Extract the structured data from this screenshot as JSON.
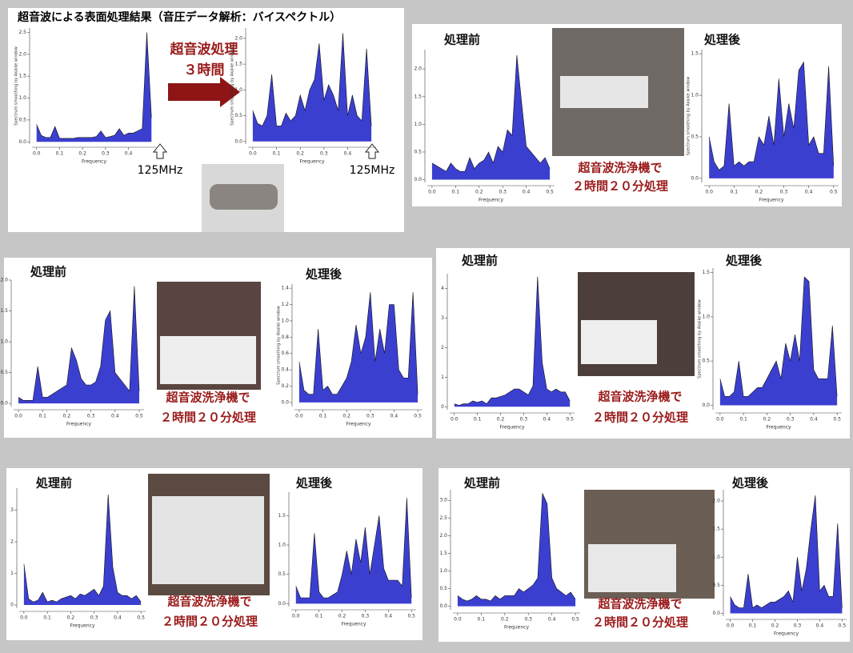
{
  "title": "超音波による表面処理結果（音圧データ解析：バイスペクトル）",
  "arrow_label": [
    "超音波処理",
    "３時間"
  ],
  "marker_labels": [
    "125MHz",
    "125MHz"
  ],
  "panels": [
    {
      "before": "処理前",
      "after": "処理後",
      "note": [
        "超音波洗浄機で",
        "２時間２０分処理"
      ]
    },
    {
      "before": "処理前",
      "after": "処理後",
      "note": [
        "超音波洗浄機で",
        "２時間２０分処理"
      ]
    },
    {
      "before": "処理前",
      "after": "処理後",
      "note": [
        "超音波洗浄機で",
        "２時間２０分処理"
      ]
    },
    {
      "before": "処理前",
      "after": "処理後",
      "note": [
        "超音波洗浄機で",
        "２時間２０分処理"
      ]
    },
    {
      "before": "処理前",
      "after": "処理後",
      "note": [
        "超音波洗浄機で",
        "２時間２０分処理"
      ]
    }
  ],
  "chart_data": [
    {
      "type": "area",
      "color": "#3b3fd0",
      "xlabel": "Frequency",
      "ylabel": "Spectrum smoothing by Akaike window",
      "xlim": [
        -0.02,
        0.52
      ],
      "ylim": [
        -0.05,
        2.6
      ],
      "xticks": [
        {
          "value": 0,
          "label": "0.0"
        },
        0.1,
        0.2,
        0.3,
        0.4
      ],
      "yticks": [
        {
          "value": 0,
          "label": "0.0"
        },
        0.5,
        {
          "value": 1,
          "label": "1.0"
        },
        1.5,
        {
          "value": 2,
          "label": "2.0"
        },
        2.5
      ],
      "x": [
        0,
        0.02,
        0.04,
        0.06,
        0.08,
        0.1,
        0.12,
        0.14,
        0.16,
        0.18,
        0.2,
        0.22,
        0.24,
        0.26,
        0.28,
        0.3,
        0.32,
        0.34,
        0.36,
        0.38,
        0.4,
        0.42,
        0.44,
        0.46,
        0.48,
        0.5
      ],
      "values": [
        0.4,
        0.15,
        0.1,
        0.1,
        0.35,
        0.08,
        0.08,
        0.08,
        0.08,
        0.1,
        0.1,
        0.1,
        0.1,
        0.12,
        0.25,
        0.1,
        0.12,
        0.15,
        0.3,
        0.15,
        0.2,
        0.2,
        0.25,
        0.3,
        2.5,
        0.55
      ]
    },
    {
      "type": "area",
      "color": "#3b3fd0",
      "xlabel": "Frequency",
      "ylabel": "Spectrum smoothing by Akaike window",
      "xlim": [
        -0.02,
        0.52
      ],
      "ylim": [
        -0.05,
        2.2
      ],
      "xticks": [
        {
          "value": 0,
          "label": "0.0"
        },
        0.1,
        0.2,
        0.3,
        0.4
      ],
      "yticks": [
        {
          "value": 0,
          "label": "0.0"
        },
        0.5,
        {
          "value": 1,
          "label": "1.0"
        },
        1.5,
        {
          "value": 2,
          "label": "2.0"
        }
      ],
      "x": [
        0,
        0.02,
        0.04,
        0.06,
        0.08,
        0.1,
        0.12,
        0.14,
        0.16,
        0.18,
        0.2,
        0.22,
        0.24,
        0.26,
        0.28,
        0.3,
        0.32,
        0.34,
        0.36,
        0.38,
        0.4,
        0.42,
        0.44,
        0.46,
        0.48,
        0.5
      ],
      "values": [
        0.6,
        0.35,
        0.3,
        0.5,
        1.3,
        0.3,
        0.3,
        0.55,
        0.4,
        0.5,
        0.9,
        0.6,
        1.0,
        1.2,
        1.9,
        0.8,
        1.1,
        0.9,
        0.6,
        2.1,
        0.5,
        0.9,
        0.5,
        0.4,
        1.8,
        0.3
      ]
    },
    {
      "type": "area",
      "color": "#3b3fd0",
      "xlabel": "Frequency",
      "xlim": [
        -0.02,
        0.52
      ],
      "ylim": [
        -0.05,
        2.35
      ],
      "xticks": [
        {
          "value": 0,
          "label": "0.0"
        },
        0.1,
        0.2,
        0.3,
        0.4,
        0.5
      ],
      "yticks": [
        {
          "value": 0,
          "label": "0.0"
        },
        0.5,
        {
          "value": 1,
          "label": "1.0"
        },
        1.5,
        {
          "value": 2,
          "label": "2.0"
        }
      ],
      "x": [
        0,
        0.02,
        0.04,
        0.06,
        0.08,
        0.1,
        0.12,
        0.14,
        0.16,
        0.18,
        0.2,
        0.22,
        0.24,
        0.26,
        0.28,
        0.3,
        0.32,
        0.34,
        0.36,
        0.38,
        0.4,
        0.42,
        0.44,
        0.46,
        0.48,
        0.5
      ],
      "values": [
        0.3,
        0.25,
        0.2,
        0.15,
        0.3,
        0.2,
        0.15,
        0.15,
        0.4,
        0.2,
        0.3,
        0.35,
        0.5,
        0.3,
        0.6,
        0.5,
        0.9,
        0.8,
        2.25,
        1.4,
        0.6,
        0.5,
        0.4,
        0.3,
        0.4,
        0.2
      ]
    },
    {
      "type": "area",
      "color": "#3b3fd0",
      "xlabel": "Frequency",
      "ylabel": "Spectrum smoothing by Akaike window",
      "xlim": [
        -0.02,
        0.52
      ],
      "ylim": [
        -0.05,
        1.55
      ],
      "xticks": [
        {
          "value": 0,
          "label": "0.0"
        },
        0.1,
        0.2,
        0.3,
        0.4,
        0.5
      ],
      "yticks": [
        {
          "value": 0,
          "label": "0.0"
        },
        0.5,
        {
          "value": 1,
          "label": "1.0"
        },
        1.5
      ],
      "x": [
        0,
        0.02,
        0.04,
        0.06,
        0.08,
        0.1,
        0.12,
        0.14,
        0.16,
        0.18,
        0.2,
        0.22,
        0.24,
        0.26,
        0.28,
        0.3,
        0.32,
        0.34,
        0.36,
        0.38,
        0.4,
        0.42,
        0.44,
        0.46,
        0.48,
        0.5
      ],
      "values": [
        0.5,
        0.2,
        0.1,
        0.15,
        0.9,
        0.15,
        0.2,
        0.15,
        0.2,
        0.2,
        0.5,
        0.4,
        0.75,
        0.4,
        1.2,
        0.5,
        0.9,
        0.6,
        1.3,
        1.4,
        0.4,
        0.5,
        0.3,
        0.3,
        1.35,
        0.15
      ]
    },
    {
      "type": "area",
      "color": "#3b3fd0",
      "xlabel": "Frequency",
      "xlim": [
        -0.02,
        0.52
      ],
      "ylim": [
        -0.05,
        2.0
      ],
      "xticks": [
        {
          "value": 0,
          "label": "0.0"
        },
        0.1,
        0.2,
        0.3,
        0.4,
        0.5
      ],
      "yticks": [
        {
          "value": 0,
          "label": "0.0"
        },
        0.5,
        {
          "value": 1,
          "label": "1.0"
        },
        1.5,
        {
          "value": 2,
          "label": "2.0"
        }
      ],
      "x": [
        0,
        0.02,
        0.04,
        0.06,
        0.08,
        0.1,
        0.12,
        0.14,
        0.16,
        0.18,
        0.2,
        0.22,
        0.24,
        0.26,
        0.28,
        0.3,
        0.32,
        0.34,
        0.36,
        0.38,
        0.4,
        0.42,
        0.44,
        0.46,
        0.48,
        0.5
      ],
      "values": [
        0.1,
        0.05,
        0.05,
        0.05,
        0.6,
        0.1,
        0.1,
        0.15,
        0.2,
        0.25,
        0.3,
        0.9,
        0.7,
        0.4,
        0.3,
        0.3,
        0.35,
        0.6,
        1.35,
        1.5,
        0.5,
        0.4,
        0.3,
        0.2,
        1.9,
        0.2
      ]
    },
    {
      "type": "area",
      "color": "#3b3fd0",
      "xlabel": "Frequency",
      "ylabel": "Spectrum smoothing by Akaike window",
      "xlim": [
        -0.02,
        0.52
      ],
      "ylim": [
        -0.05,
        1.45
      ],
      "xticks": [
        {
          "value": 0,
          "label": "0.0"
        },
        0.1,
        0.2,
        0.3,
        0.4,
        0.5
      ],
      "yticks": [
        {
          "value": 0,
          "label": "0.0"
        },
        0.2,
        0.4,
        0.6,
        0.8,
        {
          "value": 1,
          "label": "1.0"
        },
        1.2,
        1.4
      ],
      "x": [
        0,
        0.02,
        0.04,
        0.06,
        0.08,
        0.1,
        0.12,
        0.14,
        0.16,
        0.18,
        0.2,
        0.22,
        0.24,
        0.26,
        0.28,
        0.3,
        0.32,
        0.34,
        0.36,
        0.38,
        0.4,
        0.42,
        0.44,
        0.46,
        0.48,
        0.5
      ],
      "values": [
        0.5,
        0.15,
        0.1,
        0.1,
        0.9,
        0.15,
        0.2,
        0.1,
        0.1,
        0.2,
        0.3,
        0.5,
        0.95,
        0.6,
        0.8,
        1.35,
        0.5,
        0.9,
        0.6,
        1.2,
        1.2,
        0.4,
        0.3,
        0.3,
        1.35,
        0.1
      ]
    },
    {
      "type": "area",
      "color": "#3b3fd0",
      "xlabel": "Frequency",
      "xlim": [
        -0.02,
        0.52
      ],
      "ylim": [
        -0.1,
        4.5
      ],
      "xticks": [
        {
          "value": 0,
          "label": "0.0"
        },
        0.1,
        0.2,
        0.3,
        0.4,
        0.5
      ],
      "yticks": [
        0,
        1,
        2,
        3,
        4
      ],
      "x": [
        0,
        0.02,
        0.04,
        0.06,
        0.08,
        0.1,
        0.12,
        0.14,
        0.16,
        0.18,
        0.2,
        0.22,
        0.24,
        0.26,
        0.28,
        0.3,
        0.32,
        0.34,
        0.36,
        0.38,
        0.4,
        0.42,
        0.44,
        0.46,
        0.48,
        0.5
      ],
      "values": [
        0.1,
        0.05,
        0.1,
        0.1,
        0.2,
        0.15,
        0.2,
        0.1,
        0.3,
        0.3,
        0.35,
        0.4,
        0.5,
        0.6,
        0.6,
        0.5,
        0.4,
        0.7,
        4.4,
        1.5,
        0.6,
        0.5,
        0.6,
        0.5,
        0.5,
        0.2
      ]
    },
    {
      "type": "area",
      "color": "#3b3fd0",
      "xlabel": "Frequency",
      "ylabel": "Spectrum smoothing by Akaike window",
      "xlim": [
        -0.02,
        0.52
      ],
      "ylim": [
        -0.05,
        1.55
      ],
      "xticks": [
        {
          "value": 0,
          "label": "0.0"
        },
        0.1,
        0.2,
        0.3,
        0.4,
        0.5
      ],
      "yticks": [
        {
          "value": 0,
          "label": "0.0"
        },
        0.5,
        {
          "value": 1,
          "label": "1.0"
        },
        1.5
      ],
      "x": [
        0,
        0.02,
        0.04,
        0.06,
        0.08,
        0.1,
        0.12,
        0.14,
        0.16,
        0.18,
        0.2,
        0.22,
        0.24,
        0.26,
        0.28,
        0.3,
        0.32,
        0.34,
        0.36,
        0.38,
        0.4,
        0.42,
        0.44,
        0.46,
        0.48,
        0.5
      ],
      "values": [
        0.3,
        0.1,
        0.1,
        0.15,
        0.5,
        0.1,
        0.1,
        0.15,
        0.2,
        0.2,
        0.3,
        0.4,
        0.5,
        0.3,
        0.7,
        0.5,
        0.8,
        0.5,
        1.45,
        1.4,
        0.4,
        0.3,
        0.3,
        0.3,
        0.9,
        0.1
      ]
    },
    {
      "type": "area",
      "color": "#3b3fd0",
      "xlabel": "Frequency",
      "xlim": [
        -0.02,
        0.52
      ],
      "ylim": [
        -0.1,
        3.7
      ],
      "xticks": [
        {
          "value": 0,
          "label": "0.0"
        },
        0.1,
        0.2,
        0.3,
        0.4,
        0.5
      ],
      "yticks": [
        0,
        1,
        2,
        3
      ],
      "x": [
        0,
        0.02,
        0.04,
        0.06,
        0.08,
        0.1,
        0.12,
        0.14,
        0.16,
        0.18,
        0.2,
        0.22,
        0.24,
        0.26,
        0.28,
        0.3,
        0.32,
        0.34,
        0.36,
        0.38,
        0.4,
        0.42,
        0.44,
        0.46,
        0.48,
        0.5
      ],
      "values": [
        1.3,
        0.2,
        0.1,
        0.15,
        0.4,
        0.1,
        0.15,
        0.1,
        0.2,
        0.25,
        0.3,
        0.2,
        0.35,
        0.3,
        0.4,
        0.5,
        0.3,
        0.6,
        3.5,
        1.2,
        0.4,
        0.3,
        0.3,
        0.2,
        0.3,
        0.1
      ]
    },
    {
      "type": "area",
      "color": "#3b3fd0",
      "xlabel": "Frequency",
      "xlim": [
        -0.02,
        0.52
      ],
      "ylim": [
        -0.05,
        1.9
      ],
      "xticks": [
        {
          "value": 0,
          "label": "0.0"
        },
        0.1,
        0.2,
        0.3,
        0.4,
        0.5
      ],
      "yticks": [
        {
          "value": 0,
          "label": "0.0"
        },
        0.5,
        {
          "value": 1,
          "label": "1.0"
        },
        1.5
      ],
      "x": [
        0,
        0.02,
        0.04,
        0.06,
        0.08,
        0.1,
        0.12,
        0.14,
        0.16,
        0.18,
        0.2,
        0.22,
        0.24,
        0.26,
        0.28,
        0.3,
        0.32,
        0.34,
        0.36,
        0.38,
        0.4,
        0.42,
        0.44,
        0.46,
        0.48,
        0.5
      ],
      "values": [
        0.3,
        0.1,
        0.1,
        0.1,
        1.2,
        0.2,
        0.1,
        0.1,
        0.15,
        0.2,
        0.5,
        0.9,
        0.5,
        1.1,
        0.7,
        1.3,
        0.5,
        1.0,
        1.5,
        0.6,
        0.4,
        0.4,
        0.4,
        0.3,
        1.8,
        0.1
      ]
    },
    {
      "type": "area",
      "color": "#3b3fd0",
      "xlabel": "Frequency",
      "xlim": [
        -0.02,
        0.52
      ],
      "ylim": [
        -0.1,
        3.3
      ],
      "xticks": [
        {
          "value": 0,
          "label": "0.0"
        },
        0.1,
        0.2,
        0.3,
        0.4,
        0.5
      ],
      "yticks": [
        {
          "value": 0,
          "label": "0.0"
        },
        0.5,
        {
          "value": 1,
          "label": "1.0"
        },
        1.5,
        {
          "value": 2,
          "label": "2.0"
        },
        2.5,
        {
          "value": 3,
          "label": "3.0"
        }
      ],
      "x": [
        0,
        0.02,
        0.04,
        0.06,
        0.08,
        0.1,
        0.12,
        0.14,
        0.16,
        0.18,
        0.2,
        0.22,
        0.24,
        0.26,
        0.28,
        0.3,
        0.32,
        0.34,
        0.36,
        0.38,
        0.4,
        0.42,
        0.44,
        0.46,
        0.48,
        0.5
      ],
      "values": [
        0.3,
        0.2,
        0.15,
        0.2,
        0.3,
        0.2,
        0.2,
        0.15,
        0.3,
        0.2,
        0.3,
        0.3,
        0.3,
        0.5,
        0.4,
        0.5,
        0.6,
        0.8,
        3.2,
        2.9,
        0.8,
        0.5,
        0.4,
        0.3,
        0.4,
        0.2
      ]
    },
    {
      "type": "area",
      "color": "#3b3fd0",
      "xlabel": "Frequency",
      "xlim": [
        -0.02,
        0.52
      ],
      "ylim": [
        -0.05,
        2.2
      ],
      "xticks": [
        {
          "value": 0,
          "label": "0.0"
        },
        0.1,
        0.2,
        0.3,
        0.4,
        0.5
      ],
      "yticks": [
        {
          "value": 0,
          "label": "0.0"
        },
        0.5,
        {
          "value": 1,
          "label": "1.0"
        },
        1.5,
        {
          "value": 2,
          "label": "2.0"
        }
      ],
      "x": [
        0,
        0.02,
        0.04,
        0.06,
        0.08,
        0.1,
        0.12,
        0.14,
        0.16,
        0.18,
        0.2,
        0.22,
        0.24,
        0.26,
        0.28,
        0.3,
        0.32,
        0.34,
        0.36,
        0.38,
        0.4,
        0.42,
        0.44,
        0.46,
        0.48,
        0.5
      ],
      "values": [
        0.3,
        0.15,
        0.1,
        0.1,
        0.7,
        0.1,
        0.15,
        0.1,
        0.15,
        0.2,
        0.2,
        0.25,
        0.3,
        0.4,
        0.2,
        1.0,
        0.4,
        0.8,
        1.5,
        2.1,
        0.4,
        0.5,
        0.3,
        0.3,
        1.6,
        0.1
      ]
    }
  ]
}
